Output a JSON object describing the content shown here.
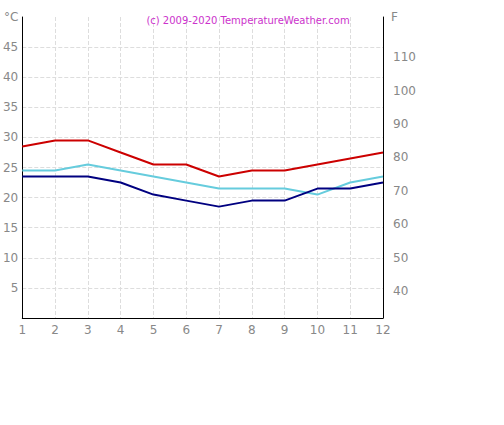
{
  "chart_data": {
    "type": "line",
    "title": "(c) 2009-2020 TemperatureWeather.com",
    "y_label": "°C",
    "y2_label": "F",
    "x": [
      1,
      2,
      3,
      4,
      5,
      6,
      7,
      8,
      9,
      10,
      11,
      12
    ],
    "xlim": [
      1,
      12
    ],
    "xticks": [
      1,
      2,
      3,
      4,
      5,
      6,
      7,
      8,
      9,
      10,
      11,
      12
    ],
    "ylim": [
      0,
      50
    ],
    "yticks": [
      5,
      10,
      15,
      20,
      25,
      30,
      35,
      40,
      45
    ],
    "y2lim": [
      32,
      122
    ],
    "y2ticks": [
      40,
      50,
      60,
      70,
      80,
      90,
      100,
      110
    ],
    "grid": true,
    "series": [
      {
        "color": "#cc0000",
        "values": [
          28.5,
          29.5,
          29.5,
          27.5,
          25.5,
          25.5,
          23.5,
          24.5,
          24.5,
          25.5,
          26.5,
          27.5
        ]
      },
      {
        "color": "#66ccdd",
        "values": [
          24.5,
          24.5,
          25.5,
          24.5,
          23.5,
          22.5,
          21.5,
          21.5,
          21.5,
          20.5,
          22.5,
          23.5
        ]
      },
      {
        "color": "#000080",
        "values": [
          23.5,
          23.5,
          23.5,
          22.5,
          20.5,
          19.5,
          18.5,
          19.5,
          19.5,
          21.5,
          21.5,
          22.5
        ]
      }
    ]
  }
}
